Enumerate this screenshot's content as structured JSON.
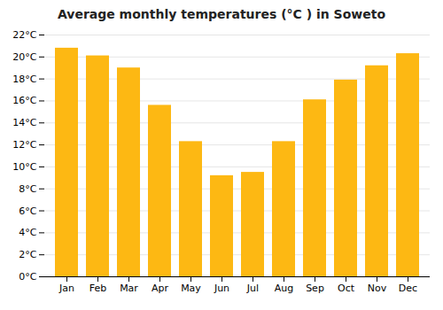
{
  "chart_data": {
    "type": "bar",
    "title": "Average monthly temperatures (°C ) in Soweto",
    "categories": [
      "Jan",
      "Feb",
      "Mar",
      "Apr",
      "May",
      "Jun",
      "Jul",
      "Aug",
      "Sep",
      "Oct",
      "Nov",
      "Dec"
    ],
    "values": [
      20.8,
      20.1,
      19.0,
      15.6,
      12.3,
      9.2,
      9.5,
      12.3,
      16.1,
      17.9,
      19.2,
      20.3
    ],
    "color": "#FDB813",
    "ylim": [
      0,
      22
    ],
    "yticks": [
      {
        "value": 0,
        "label": "0°C"
      },
      {
        "value": 2,
        "label": "2°C"
      },
      {
        "value": 4,
        "label": "4°C"
      },
      {
        "value": 6,
        "label": "6°C"
      },
      {
        "value": 8,
        "label": "8°C"
      },
      {
        "value": 10,
        "label": "10°C"
      },
      {
        "value": 12,
        "label": "12°C"
      },
      {
        "value": 14,
        "label": "14°C"
      },
      {
        "value": 16,
        "label": "16°C"
      },
      {
        "value": 18,
        "label": "18°C"
      },
      {
        "value": 20,
        "label": "20°C"
      },
      {
        "value": 22,
        "label": "22°C"
      }
    ],
    "grid": true
  }
}
